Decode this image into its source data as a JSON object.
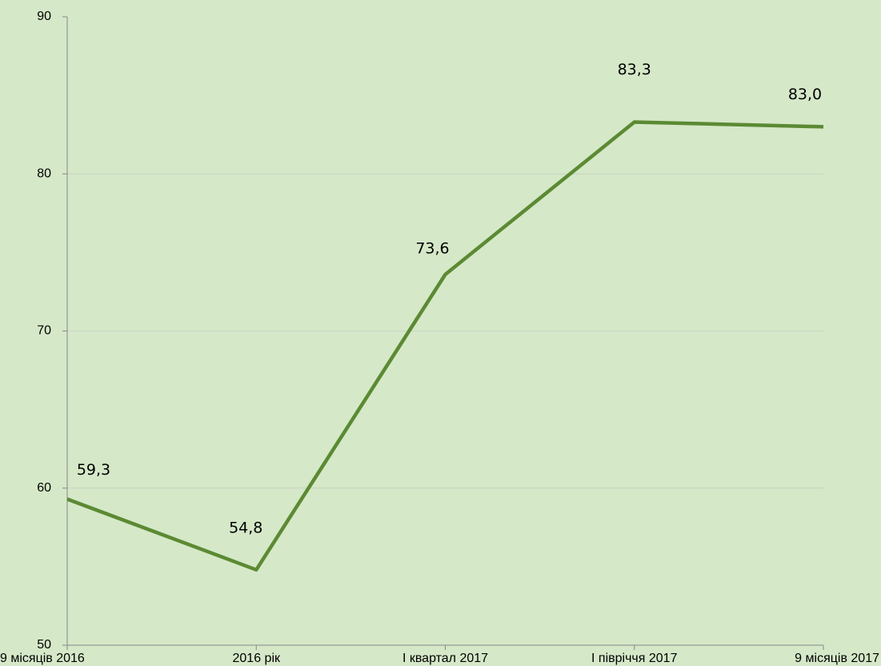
{
  "chart_data": {
    "type": "line",
    "categories": [
      "9 місяців 2016",
      "2016 рік",
      "І квартал 2017",
      "І півріччя 2017",
      "9 місяців 2017"
    ],
    "series": [
      {
        "color": "#5b8a33",
        "values": [
          59.3,
          54.8,
          73.6,
          83.3,
          83.0
        ],
        "value_labels": [
          "59,3",
          "54,8",
          "73,6",
          "83,3",
          "83,0"
        ]
      }
    ],
    "ylim": [
      50,
      90
    ],
    "yticks": [
      50,
      60,
      70,
      80,
      90
    ],
    "grid": true
  }
}
